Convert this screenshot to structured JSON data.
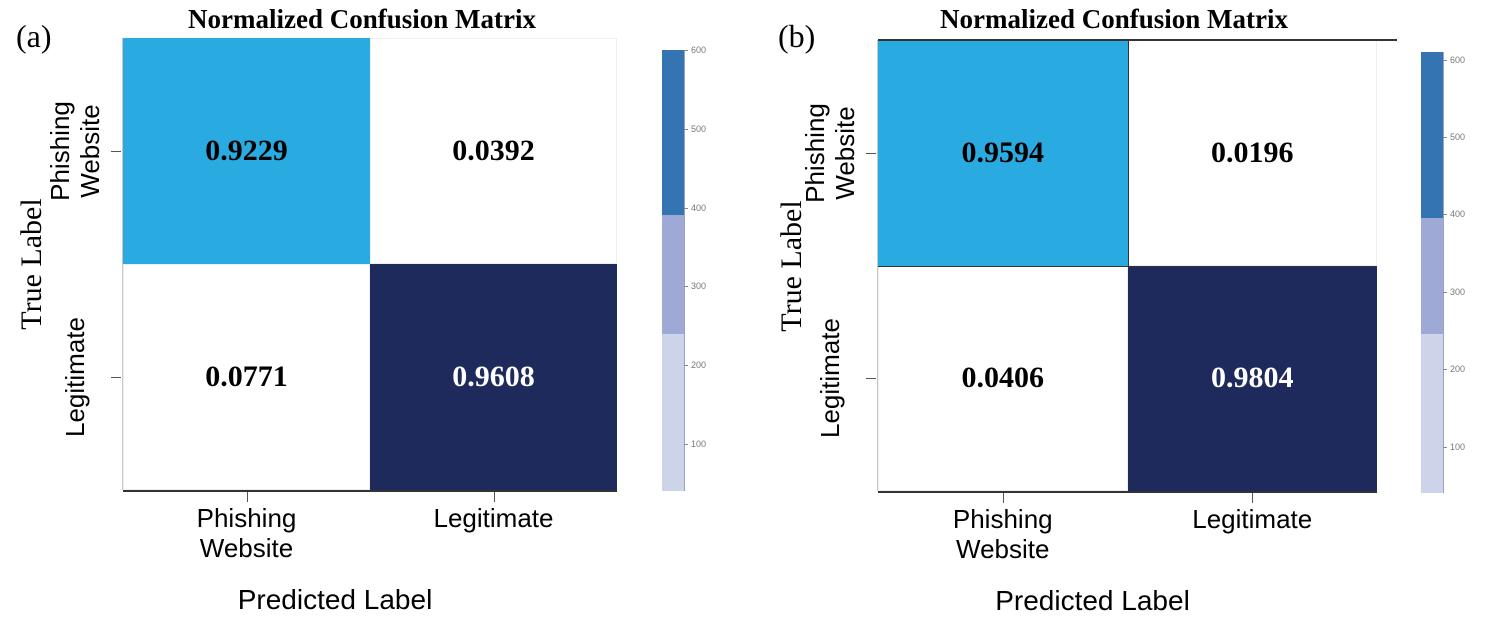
{
  "chart_data": [
    {
      "type": "heatmap",
      "panel_label": "(a)",
      "title": "Normalized Confusion Matrix",
      "xlabel": "Predicted Label",
      "ylabel": "True Label",
      "x_categories": [
        "Phishing Website",
        "Legitimate"
      ],
      "y_categories": [
        "Phishing Website",
        "Legitimate"
      ],
      "x_tick_lines": [
        [
          "Phishing",
          "Website"
        ],
        [
          "Legitimate"
        ]
      ],
      "y_tick_lines": [
        [
          "Phishing",
          "Website"
        ],
        [
          "Legitimate"
        ]
      ],
      "values": [
        [
          0.9229,
          0.0392
        ],
        [
          0.0771,
          0.9608
        ]
      ],
      "value_labels": [
        [
          "0.9229",
          "0.0392"
        ],
        [
          "0.0771",
          "0.9608"
        ]
      ],
      "cell_colors": [
        [
          "#29abe2",
          "#ffffff"
        ],
        [
          "#ffffff",
          "#1f2a5c"
        ]
      ],
      "text_colors": [
        [
          "#000000",
          "#000000"
        ],
        [
          "#000000",
          "#ffffff"
        ]
      ],
      "colorbar": {
        "range": [
          40,
          600
        ],
        "ticks": [
          "100",
          "200",
          "300",
          "400",
          "500",
          "600"
        ],
        "tick_values": [
          100,
          200,
          300,
          400,
          500,
          600
        ],
        "segments": [
          {
            "from": 40,
            "to": 240,
            "color": "#cdd4ea"
          },
          {
            "from": 240,
            "to": 390,
            "color": "#9ea9d6"
          },
          {
            "from": 390,
            "to": 600,
            "color": "#3474b2"
          }
        ]
      }
    },
    {
      "type": "heatmap",
      "panel_label": "(b)",
      "title": "Normalized Confusion Matrix",
      "xlabel": "Predicted Label",
      "ylabel": "True Label",
      "x_categories": [
        "Phishing Website",
        "Legitimate"
      ],
      "y_categories": [
        "Phishing Website",
        "Legitimate"
      ],
      "x_tick_lines": [
        [
          "Phishing",
          "Website"
        ],
        [
          "Legitimate"
        ]
      ],
      "y_tick_lines": [
        [
          "Phishing",
          "Website"
        ],
        [
          "Legitimate"
        ]
      ],
      "values": [
        [
          0.9594,
          0.0196
        ],
        [
          0.0406,
          0.9804
        ]
      ],
      "value_labels": [
        [
          "0.9594",
          "0.0196"
        ],
        [
          "0.0406",
          "0.9804"
        ]
      ],
      "cell_colors": [
        [
          "#29abe2",
          "#ffffff"
        ],
        [
          "#ffffff",
          "#1f2a5c"
        ]
      ],
      "text_colors": [
        [
          "#000000",
          "#000000"
        ],
        [
          "#000000",
          "#ffffff"
        ]
      ],
      "colorbar": {
        "range": [
          40,
          610
        ],
        "ticks": [
          "100",
          "200",
          "300",
          "400",
          "500",
          "600"
        ],
        "tick_values": [
          100,
          200,
          300,
          400,
          500,
          600
        ],
        "segments": [
          {
            "from": 40,
            "to": 245,
            "color": "#cdd4ea"
          },
          {
            "from": 245,
            "to": 395,
            "color": "#9ea9d6"
          },
          {
            "from": 395,
            "to": 610,
            "color": "#3474b2"
          }
        ]
      }
    }
  ]
}
